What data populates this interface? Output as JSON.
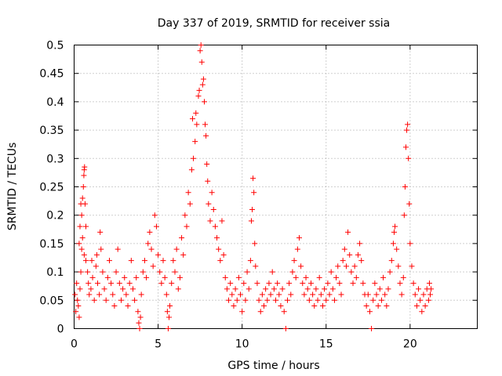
{
  "chart_data": {
    "type": "scatter",
    "title": "Day 337 of 2019, SRMTID for receiver ssia",
    "xlabel": "GPS time / hours",
    "ylabel": "SRMTID / TECUs",
    "xlim": [
      0,
      24
    ],
    "ylim": [
      0,
      0.5
    ],
    "xticks": [
      0,
      5,
      10,
      15,
      20
    ],
    "xtick_labels": [
      "0",
      "5",
      "10",
      "15",
      "20"
    ],
    "yticks": [
      0,
      0.05,
      0.1,
      0.15,
      0.2,
      0.25,
      0.3,
      0.35,
      0.4,
      0.45,
      0.5
    ],
    "ytick_labels": [
      "0",
      "0.05",
      "0.1",
      "0.15",
      "0.2",
      "0.25",
      "0.3",
      "0.35",
      "0.4",
      "0.45",
      "0.5"
    ],
    "grid": true,
    "marker": "+",
    "marker_color": "#ff0000",
    "series": [
      {
        "name": "SRMTID",
        "points": [
          [
            0.05,
            0.06
          ],
          [
            0.1,
            0.03
          ],
          [
            0.15,
            0.08
          ],
          [
            0.2,
            0.05
          ],
          [
            0.25,
            0.04
          ],
          [
            0.3,
            0.02
          ],
          [
            0.35,
            0.07
          ],
          [
            0.4,
            0.1
          ],
          [
            0.3,
            0.15
          ],
          [
            0.35,
            0.18
          ],
          [
            0.4,
            0.22
          ],
          [
            0.45,
            0.2
          ],
          [
            0.5,
            0.23
          ],
          [
            0.55,
            0.25
          ],
          [
            0.6,
            0.28
          ],
          [
            0.62,
            0.285
          ],
          [
            0.58,
            0.27
          ],
          [
            0.65,
            0.22
          ],
          [
            0.7,
            0.18
          ],
          [
            0.5,
            0.16
          ],
          [
            0.45,
            0.14
          ],
          [
            0.6,
            0.13
          ],
          [
            0.7,
            0.12
          ],
          [
            0.8,
            0.1
          ],
          [
            0.85,
            0.08
          ],
          [
            0.9,
            0.06
          ],
          [
            1.0,
            0.07
          ],
          [
            1.05,
            0.12
          ],
          [
            1.1,
            0.09
          ],
          [
            1.2,
            0.05
          ],
          [
            1.3,
            0.11
          ],
          [
            1.35,
            0.13
          ],
          [
            1.4,
            0.08
          ],
          [
            1.5,
            0.06
          ],
          [
            1.55,
            0.17
          ],
          [
            1.6,
            0.14
          ],
          [
            1.7,
            0.1
          ],
          [
            1.8,
            0.07
          ],
          [
            1.9,
            0.05
          ],
          [
            2.0,
            0.09
          ],
          [
            2.1,
            0.12
          ],
          [
            2.2,
            0.08
          ],
          [
            2.3,
            0.06
          ],
          [
            2.4,
            0.04
          ],
          [
            2.5,
            0.1
          ],
          [
            2.6,
            0.14
          ],
          [
            2.7,
            0.08
          ],
          [
            2.8,
            0.05
          ],
          [
            2.9,
            0.07
          ],
          [
            3.0,
            0.09
          ],
          [
            3.1,
            0.06
          ],
          [
            3.2,
            0.04
          ],
          [
            3.3,
            0.08
          ],
          [
            3.4,
            0.12
          ],
          [
            3.5,
            0.07
          ],
          [
            3.6,
            0.05
          ],
          [
            3.7,
            0.09
          ],
          [
            3.8,
            0.03
          ],
          [
            3.85,
            0.01
          ],
          [
            3.9,
            0.0
          ],
          [
            3.95,
            0.02
          ],
          [
            4.0,
            0.06
          ],
          [
            4.1,
            0.1
          ],
          [
            4.2,
            0.12
          ],
          [
            4.3,
            0.09
          ],
          [
            4.4,
            0.15
          ],
          [
            4.5,
            0.17
          ],
          [
            4.6,
            0.14
          ],
          [
            4.7,
            0.11
          ],
          [
            4.8,
            0.2
          ],
          [
            4.9,
            0.18
          ],
          [
            5.0,
            0.13
          ],
          [
            5.1,
            0.1
          ],
          [
            5.2,
            0.08
          ],
          [
            5.3,
            0.12
          ],
          [
            5.4,
            0.09
          ],
          [
            5.5,
            0.06
          ],
          [
            5.55,
            0.03
          ],
          [
            5.6,
            0.0
          ],
          [
            5.65,
            0.02
          ],
          [
            5.7,
            0.04
          ],
          [
            5.8,
            0.08
          ],
          [
            5.9,
            0.12
          ],
          [
            6.0,
            0.1
          ],
          [
            6.1,
            0.14
          ],
          [
            6.2,
            0.07
          ],
          [
            6.3,
            0.09
          ],
          [
            6.4,
            0.16
          ],
          [
            6.5,
            0.13
          ],
          [
            6.6,
            0.2
          ],
          [
            6.7,
            0.18
          ],
          [
            6.8,
            0.24
          ],
          [
            6.9,
            0.22
          ],
          [
            7.0,
            0.28
          ],
          [
            7.05,
            0.37
          ],
          [
            7.1,
            0.3
          ],
          [
            7.2,
            0.33
          ],
          [
            7.25,
            0.38
          ],
          [
            7.3,
            0.36
          ],
          [
            7.4,
            0.41
          ],
          [
            7.45,
            0.42
          ],
          [
            7.5,
            0.49
          ],
          [
            7.55,
            0.5
          ],
          [
            7.6,
            0.47
          ],
          [
            7.65,
            0.43
          ],
          [
            7.7,
            0.44
          ],
          [
            7.75,
            0.4
          ],
          [
            7.8,
            0.36
          ],
          [
            7.85,
            0.34
          ],
          [
            7.9,
            0.29
          ],
          [
            7.95,
            0.26
          ],
          [
            8.0,
            0.22
          ],
          [
            8.1,
            0.19
          ],
          [
            8.2,
            0.24
          ],
          [
            8.3,
            0.21
          ],
          [
            8.4,
            0.18
          ],
          [
            8.5,
            0.16
          ],
          [
            8.6,
            0.14
          ],
          [
            8.7,
            0.12
          ],
          [
            8.8,
            0.19
          ],
          [
            8.9,
            0.13
          ],
          [
            9.0,
            0.09
          ],
          [
            9.1,
            0.07
          ],
          [
            9.2,
            0.05
          ],
          [
            9.3,
            0.08
          ],
          [
            9.4,
            0.06
          ],
          [
            9.5,
            0.04
          ],
          [
            9.6,
            0.07
          ],
          [
            9.7,
            0.05
          ],
          [
            9.8,
            0.09
          ],
          [
            9.9,
            0.06
          ],
          [
            10.0,
            0.03
          ],
          [
            10.1,
            0.08
          ],
          [
            10.2,
            0.05
          ],
          [
            10.3,
            0.1
          ],
          [
            10.4,
            0.07
          ],
          [
            10.5,
            0.12
          ],
          [
            10.55,
            0.19
          ],
          [
            10.6,
            0.21
          ],
          [
            10.65,
            0.265
          ],
          [
            10.7,
            0.24
          ],
          [
            10.75,
            0.15
          ],
          [
            10.8,
            0.11
          ],
          [
            10.9,
            0.08
          ],
          [
            11.0,
            0.05
          ],
          [
            11.1,
            0.03
          ],
          [
            11.2,
            0.06
          ],
          [
            11.3,
            0.04
          ],
          [
            11.4,
            0.07
          ],
          [
            11.5,
            0.05
          ],
          [
            11.6,
            0.08
          ],
          [
            11.7,
            0.06
          ],
          [
            11.8,
            0.1
          ],
          [
            11.9,
            0.07
          ],
          [
            12.0,
            0.05
          ],
          [
            12.1,
            0.08
          ],
          [
            12.2,
            0.06
          ],
          [
            12.3,
            0.04
          ],
          [
            12.4,
            0.07
          ],
          [
            12.5,
            0.03
          ],
          [
            12.6,
            0.0
          ],
          [
            12.7,
            0.05
          ],
          [
            12.8,
            0.08
          ],
          [
            12.9,
            0.06
          ],
          [
            13.0,
            0.1
          ],
          [
            13.1,
            0.12
          ],
          [
            13.2,
            0.09
          ],
          [
            13.3,
            0.14
          ],
          [
            13.4,
            0.16
          ],
          [
            13.5,
            0.11
          ],
          [
            13.6,
            0.08
          ],
          [
            13.7,
            0.06
          ],
          [
            13.8,
            0.09
          ],
          [
            13.9,
            0.07
          ],
          [
            14.0,
            0.05
          ],
          [
            14.1,
            0.08
          ],
          [
            14.2,
            0.06
          ],
          [
            14.3,
            0.04
          ],
          [
            14.4,
            0.07
          ],
          [
            14.5,
            0.05
          ],
          [
            14.6,
            0.09
          ],
          [
            14.7,
            0.06
          ],
          [
            14.8,
            0.04
          ],
          [
            14.9,
            0.07
          ],
          [
            15.0,
            0.05
          ],
          [
            15.1,
            0.08
          ],
          [
            15.2,
            0.06
          ],
          [
            15.3,
            0.1
          ],
          [
            15.4,
            0.07
          ],
          [
            15.5,
            0.05
          ],
          [
            15.6,
            0.09
          ],
          [
            15.7,
            0.11
          ],
          [
            15.8,
            0.08
          ],
          [
            15.9,
            0.06
          ],
          [
            16.0,
            0.12
          ],
          [
            16.1,
            0.14
          ],
          [
            16.2,
            0.11
          ],
          [
            16.3,
            0.17
          ],
          [
            16.4,
            0.13
          ],
          [
            16.5,
            0.1
          ],
          [
            16.6,
            0.08
          ],
          [
            16.7,
            0.11
          ],
          [
            16.8,
            0.09
          ],
          [
            16.9,
            0.13
          ],
          [
            17.0,
            0.15
          ],
          [
            17.1,
            0.12
          ],
          [
            17.2,
            0.08
          ],
          [
            17.3,
            0.06
          ],
          [
            17.4,
            0.04
          ],
          [
            17.5,
            0.06
          ],
          [
            17.6,
            0.03
          ],
          [
            17.7,
            0.0
          ],
          [
            17.8,
            0.05
          ],
          [
            17.9,
            0.08
          ],
          [
            18.0,
            0.06
          ],
          [
            18.1,
            0.04
          ],
          [
            18.2,
            0.07
          ],
          [
            18.3,
            0.05
          ],
          [
            18.4,
            0.09
          ],
          [
            18.5,
            0.06
          ],
          [
            18.6,
            0.04
          ],
          [
            18.7,
            0.07
          ],
          [
            18.8,
            0.1
          ],
          [
            18.9,
            0.12
          ],
          [
            19.0,
            0.15
          ],
          [
            19.05,
            0.17
          ],
          [
            19.1,
            0.18
          ],
          [
            19.2,
            0.14
          ],
          [
            19.3,
            0.11
          ],
          [
            19.4,
            0.08
          ],
          [
            19.5,
            0.06
          ],
          [
            19.6,
            0.09
          ],
          [
            19.65,
            0.2
          ],
          [
            19.7,
            0.25
          ],
          [
            19.75,
            0.32
          ],
          [
            19.8,
            0.35
          ],
          [
            19.85,
            0.36
          ],
          [
            19.9,
            0.3
          ],
          [
            19.95,
            0.22
          ],
          [
            20.0,
            0.15
          ],
          [
            20.1,
            0.11
          ],
          [
            20.2,
            0.08
          ],
          [
            20.3,
            0.06
          ],
          [
            20.4,
            0.04
          ],
          [
            20.5,
            0.07
          ],
          [
            20.6,
            0.05
          ],
          [
            20.7,
            0.03
          ],
          [
            20.8,
            0.06
          ],
          [
            20.9,
            0.04
          ],
          [
            21.0,
            0.07
          ],
          [
            21.1,
            0.05
          ],
          [
            21.15,
            0.08
          ],
          [
            21.2,
            0.06
          ],
          [
            21.25,
            0.07
          ]
        ]
      }
    ]
  }
}
